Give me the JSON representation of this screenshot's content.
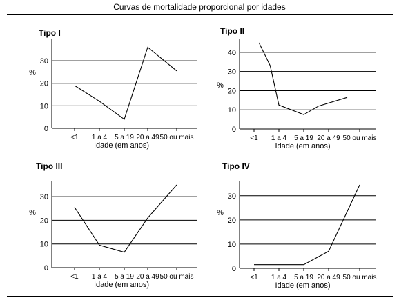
{
  "page": {
    "title": "Curvas de mortalidade proporcional por idades"
  },
  "chart_data": [
    {
      "type": "line",
      "title": "Tipo I",
      "ylabel": "%",
      "xlabel": "Idade (em anos)",
      "categories": [
        "<1",
        "1 a 4",
        "5 a 19",
        "20 a 49",
        "50 ou mais"
      ],
      "values": [
        19,
        12,
        4,
        36,
        25.5
      ],
      "ylim": [
        0,
        38
      ],
      "yticks": [
        0,
        10,
        20,
        30
      ],
      "grid": true
    },
    {
      "type": "line",
      "title": "Tipo II",
      "ylabel": "%",
      "xlabel": "Idade (em anos)",
      "categories": [
        "<1",
        "1 a 4",
        "5 a 19",
        "20 a 49",
        "50 ou mais"
      ],
      "x": [
        0.2,
        0.65,
        1,
        2,
        2.6,
        3.6
      ],
      "values": [
        45,
        33,
        12.5,
        7.5,
        12,
        16.5
      ],
      "ylim": [
        0,
        45
      ],
      "yticks": [
        0,
        10,
        20,
        30,
        40
      ],
      "grid": true
    },
    {
      "type": "line",
      "title": "Tipo III",
      "ylabel": "%",
      "xlabel": "Idade (em anos)",
      "categories": [
        "<1",
        "1 a 4",
        "5 a 19",
        "20 a 49",
        "50 ou mais"
      ],
      "values": [
        25.5,
        9.5,
        6.5,
        21,
        35
      ],
      "ylim": [
        0,
        35
      ],
      "yticks": [
        0,
        10,
        20,
        30
      ],
      "grid": true
    },
    {
      "type": "line",
      "title": "Tipo IV",
      "ylabel": "%",
      "xlabel": "Idade (em anos)",
      "categories": [
        "<1",
        "1 a 4",
        "5 a 19",
        "20 a 49",
        "50 ou mais"
      ],
      "values": [
        1.5,
        1.5,
        1.5,
        7,
        34.5
      ],
      "ylim": [
        0,
        34.5
      ],
      "yticks": [
        0,
        10,
        20,
        30
      ],
      "grid": true
    }
  ]
}
